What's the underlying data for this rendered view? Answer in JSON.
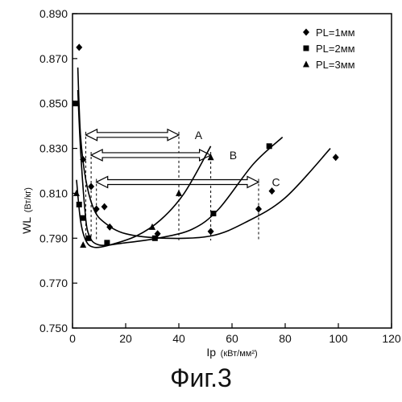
{
  "caption": "Фиг.3",
  "chart_data": {
    "type": "scatter",
    "xlabel": "Ip",
    "xunit": "(кВт/мм²)",
    "ylabel": "WL",
    "yunit": "(Вт/кг)",
    "xlim": [
      0,
      120
    ],
    "ylim": [
      0.75,
      0.89
    ],
    "xticks": [
      "0",
      "20",
      "40",
      "60",
      "80",
      "100",
      "120"
    ],
    "yticks": [
      "0.750",
      "0.770",
      "0.790",
      "0.810",
      "0.830",
      "0.850",
      "0.870",
      "0.890"
    ],
    "legend_position": "top-right",
    "series": [
      {
        "name": "PL=1мм",
        "marker": "diamond",
        "points": [
          [
            2.5,
            0.875
          ],
          [
            4,
            0.825
          ],
          [
            7,
            0.813
          ],
          [
            9,
            0.803
          ],
          [
            12,
            0.804
          ],
          [
            14,
            0.795
          ],
          [
            32,
            0.792
          ],
          [
            52,
            0.793
          ],
          [
            70,
            0.803
          ],
          [
            75,
            0.811
          ],
          [
            99,
            0.826
          ]
        ],
        "curve": [
          [
            2,
            0.866
          ],
          [
            3,
            0.836
          ],
          [
            5,
            0.816
          ],
          [
            8,
            0.803
          ],
          [
            12,
            0.797
          ],
          [
            20,
            0.792
          ],
          [
            35,
            0.79
          ],
          [
            52,
            0.791
          ],
          [
            65,
            0.797
          ],
          [
            80,
            0.808
          ],
          [
            97,
            0.83
          ]
        ]
      },
      {
        "name": "PL=2мм",
        "marker": "square",
        "points": [
          [
            1,
            0.85
          ],
          [
            2.5,
            0.805
          ],
          [
            4,
            0.799
          ],
          [
            6,
            0.79
          ],
          [
            13,
            0.788
          ],
          [
            31,
            0.79
          ],
          [
            53,
            0.801
          ],
          [
            74,
            0.831
          ]
        ],
        "curve": [
          [
            2,
            0.856
          ],
          [
            3,
            0.83
          ],
          [
            4.5,
            0.805
          ],
          [
            6,
            0.792
          ],
          [
            10,
            0.787
          ],
          [
            20,
            0.788
          ],
          [
            32,
            0.79
          ],
          [
            45,
            0.794
          ],
          [
            55,
            0.803
          ],
          [
            68,
            0.823
          ],
          [
            79,
            0.835
          ]
        ]
      },
      {
        "name": "PL=3мм",
        "marker": "triangle",
        "points": [
          [
            1.5,
            0.81
          ],
          [
            4,
            0.787
          ],
          [
            30,
            0.795
          ],
          [
            40,
            0.81
          ],
          [
            52,
            0.826
          ]
        ],
        "curve": [
          [
            1.5,
            0.816
          ],
          [
            3,
            0.798
          ],
          [
            5,
            0.789
          ],
          [
            8,
            0.786
          ],
          [
            14,
            0.787
          ],
          [
            24,
            0.791
          ],
          [
            33,
            0.798
          ],
          [
            42,
            0.81
          ],
          [
            52,
            0.831
          ]
        ]
      }
    ],
    "annotations": [
      {
        "label": "A",
        "x_from": 5,
        "x_to": 40,
        "y": 0.836,
        "lx": 46,
        "ly": 0.836
      },
      {
        "label": "B",
        "x_from": 7,
        "x_to": 52,
        "y": 0.827,
        "lx": 59,
        "ly": 0.827
      },
      {
        "label": "C",
        "x_from": 9,
        "x_to": 70,
        "y": 0.815,
        "lx": 75,
        "ly": 0.815
      }
    ]
  }
}
